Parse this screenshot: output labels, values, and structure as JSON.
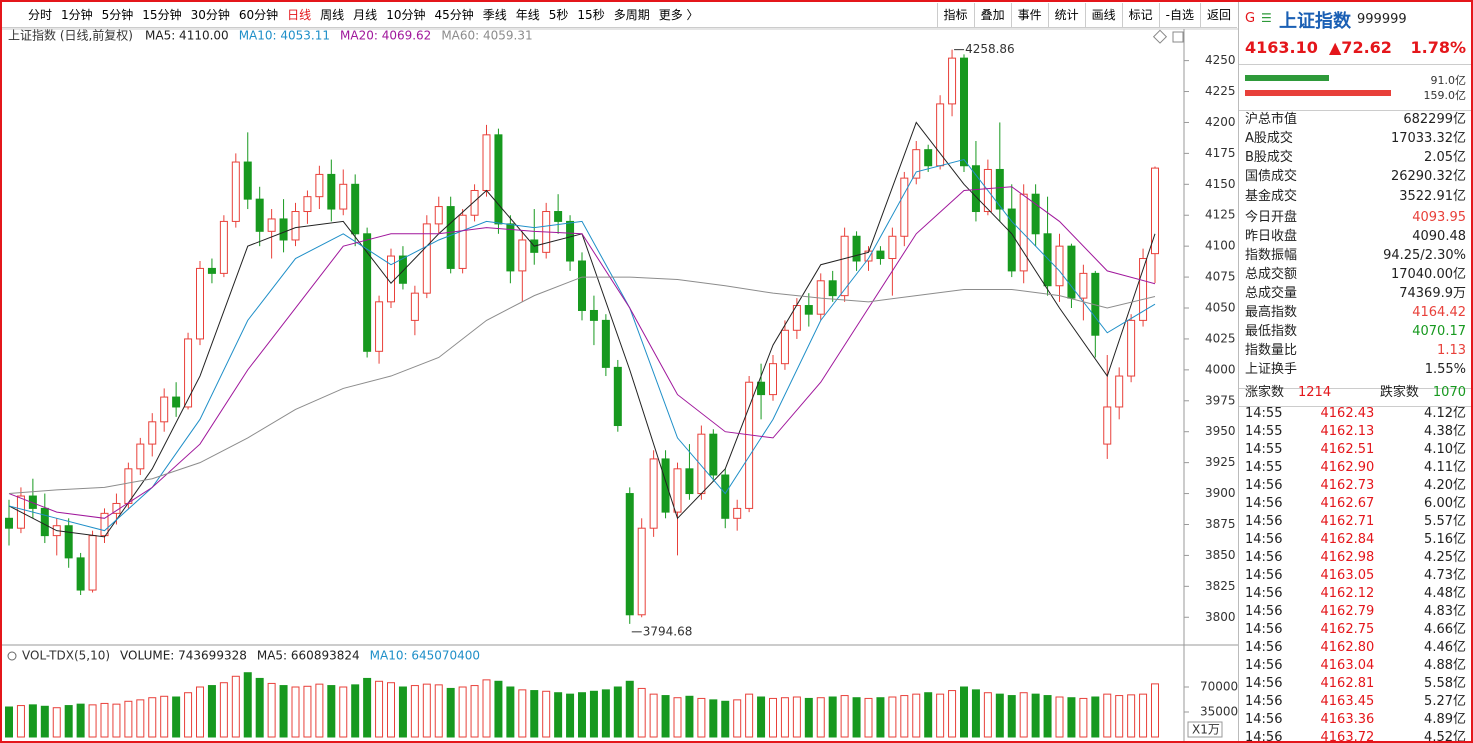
{
  "toolbar": {
    "periods": [
      "分时",
      "1分钟",
      "5分钟",
      "15分钟",
      "30分钟",
      "60分钟",
      "日线",
      "周线",
      "月线",
      "10分钟",
      "45分钟",
      "季线",
      "年线",
      "5秒",
      "15秒",
      "多周期",
      "更多 〉"
    ],
    "active": 6,
    "tools": [
      "指标",
      "叠加",
      "事件",
      "统计",
      "画线",
      "标记",
      "-自选",
      "返回"
    ]
  },
  "chart_data": [
    {
      "type": "candlestick",
      "title": "上证指数 (日线,前复权)",
      "up_color": "#e8403a",
      "down_color": "#17991f",
      "candles": [
        [
          3880,
          3895,
          3858,
          3872
        ],
        [
          3872,
          3905,
          3868,
          3898
        ],
        [
          3898,
          3912,
          3880,
          3888
        ],
        [
          3888,
          3900,
          3860,
          3866
        ],
        [
          3866,
          3880,
          3850,
          3874
        ],
        [
          3874,
          3880,
          3840,
          3848
        ],
        [
          3848,
          3852,
          3818,
          3822
        ],
        [
          3822,
          3870,
          3820,
          3866
        ],
        [
          3866,
          3888,
          3860,
          3884
        ],
        [
          3884,
          3900,
          3875,
          3892
        ],
        [
          3892,
          3925,
          3888,
          3920
        ],
        [
          3920,
          3945,
          3915,
          3940
        ],
        [
          3940,
          3965,
          3930,
          3958
        ],
        [
          3958,
          3985,
          3950,
          3978
        ],
        [
          3978,
          3990,
          3962,
          3970
        ],
        [
          3970,
          4030,
          3968,
          4025
        ],
        [
          4025,
          4088,
          4020,
          4082
        ],
        [
          4082,
          4090,
          4070,
          4078
        ],
        [
          4078,
          4125,
          4075,
          4120
        ],
        [
          4120,
          4175,
          4115,
          4168
        ],
        [
          4168,
          4192,
          4130,
          4138
        ],
        [
          4138,
          4148,
          4100,
          4112
        ],
        [
          4112,
          4130,
          4090,
          4122
        ],
        [
          4122,
          4138,
          4095,
          4105
        ],
        [
          4105,
          4135,
          4100,
          4128
        ],
        [
          4128,
          4145,
          4118,
          4140
        ],
        [
          4140,
          4165,
          4130,
          4158
        ],
        [
          4158,
          4170,
          4120,
          4130
        ],
        [
          4130,
          4162,
          4125,
          4150
        ],
        [
          4150,
          4158,
          4100,
          4110
        ],
        [
          4110,
          4115,
          4010,
          4015
        ],
        [
          4015,
          4060,
          4005,
          4055
        ],
        [
          4055,
          4098,
          4050,
          4092
        ],
        [
          4092,
          4100,
          4065,
          4070
        ],
        [
          4040,
          4068,
          4028,
          4062
        ],
        [
          4062,
          4125,
          4058,
          4118
        ],
        [
          4118,
          4140,
          4110,
          4132
        ],
        [
          4132,
          4140,
          4078,
          4082
        ],
        [
          4082,
          4130,
          4078,
          4125
        ],
        [
          4125,
          4150,
          4120,
          4145
        ],
        [
          4145,
          4198,
          4140,
          4190
        ],
        [
          4190,
          4195,
          4110,
          4118
        ],
        [
          4118,
          4125,
          4070,
          4080
        ],
        [
          4080,
          4112,
          4055,
          4105
        ],
        [
          4105,
          4130,
          4085,
          4095
        ],
        [
          4095,
          4135,
          4090,
          4128
        ],
        [
          4128,
          4142,
          4110,
          4120
        ],
        [
          4120,
          4125,
          4080,
          4088
        ],
        [
          4088,
          4095,
          4040,
          4048
        ],
        [
          4048,
          4060,
          4020,
          4040
        ],
        [
          4040,
          4045,
          3995,
          4002
        ],
        [
          4002,
          4008,
          3950,
          3955
        ],
        [
          3900,
          3905,
          3794.68,
          3802
        ],
        [
          3802,
          3880,
          3800,
          3872
        ],
        [
          3872,
          3935,
          3865,
          3928
        ],
        [
          3928,
          3935,
          3880,
          3885
        ],
        [
          3885,
          3925,
          3850,
          3920
        ],
        [
          3920,
          3940,
          3895,
          3900
        ],
        [
          3900,
          3955,
          3895,
          3948
        ],
        [
          3948,
          3952,
          3910,
          3915
        ],
        [
          3915,
          3920,
          3872,
          3880
        ],
        [
          3880,
          3895,
          3870,
          3888
        ],
        [
          3888,
          3995,
          3885,
          3990
        ],
        [
          3990,
          4005,
          3960,
          3980
        ],
        [
          3980,
          4012,
          3975,
          4005
        ],
        [
          4005,
          4040,
          4000,
          4032
        ],
        [
          4032,
          4058,
          4025,
          4052
        ],
        [
          4052,
          4062,
          4035,
          4045
        ],
        [
          4045,
          4078,
          4040,
          4072
        ],
        [
          4072,
          4080,
          4055,
          4060
        ],
        [
          4060,
          4115,
          4055,
          4108
        ],
        [
          4108,
          4112,
          4080,
          4088
        ],
        [
          4088,
          4100,
          4080,
          4096
        ],
        [
          4096,
          4100,
          4085,
          4090
        ],
        [
          4090,
          4115,
          4060,
          4108
        ],
        [
          4108,
          4160,
          4100,
          4155
        ],
        [
          4155,
          4185,
          4150,
          4178
        ],
        [
          4178,
          4182,
          4160,
          4165
        ],
        [
          4165,
          4222,
          4162,
          4215
        ],
        [
          4215,
          4258.86,
          4205,
          4252
        ],
        [
          4252,
          4255,
          4160,
          4165
        ],
        [
          4165,
          4185,
          4120,
          4128
        ],
        [
          4128,
          4170,
          4125,
          4162
        ],
        [
          4162,
          4200,
          4120,
          4130
        ],
        [
          4130,
          4150,
          4075,
          4080
        ],
        [
          4080,
          4150,
          4070,
          4142
        ],
        [
          4142,
          4150,
          4100,
          4110
        ],
        [
          4110,
          4140,
          4060,
          4068
        ],
        [
          4068,
          4110,
          4055,
          4100
        ],
        [
          4100,
          4102,
          4050,
          4058
        ],
        [
          4058,
          4085,
          4040,
          4078
        ],
        [
          4078,
          4080,
          4010,
          4028
        ],
        [
          3940,
          4012,
          3928,
          3970
        ],
        [
          3970,
          4002,
          3960,
          3995
        ],
        [
          3995,
          4045,
          3990,
          4040
        ],
        [
          4040,
          4098,
          4035,
          4090
        ],
        [
          4093.95,
          4164.42,
          4070.17,
          4163.1
        ]
      ],
      "series": [
        {
          "name": "MA5: 4110.00",
          "color": "#222222",
          "values": [
            3890,
            3870,
            3865,
            3920,
            3995,
            4100,
            4115,
            4120,
            4070,
            4110,
            4145,
            4100,
            4110,
            4000,
            3880,
            3920,
            4020,
            4085,
            4095,
            4200,
            4150,
            4110,
            4050,
            3995,
            4110
          ]
        },
        {
          "name": "MA10: 4053.11",
          "color": "#1f8fc8",
          "values": [
            3890,
            3880,
            3870,
            3905,
            3960,
            4040,
            4090,
            4110,
            4085,
            4105,
            4120,
            4115,
            4120,
            4050,
            3945,
            3900,
            3960,
            4040,
            4090,
            4160,
            4170,
            4120,
            4080,
            4030,
            4053.11
          ]
        },
        {
          "name": "MA20: 4069.62",
          "color": "#a0179c",
          "values": [
            3900,
            3885,
            3880,
            3905,
            3940,
            4000,
            4050,
            4100,
            4110,
            4110,
            4115,
            4112,
            4110,
            4050,
            3980,
            3950,
            3945,
            3990,
            4050,
            4110,
            4145,
            4148,
            4120,
            4080,
            4069.62
          ]
        },
        {
          "name": "MA60: 4059.31",
          "color": "#8c8c8c",
          "values": [
            3900,
            3903,
            3905,
            3912,
            3925,
            3945,
            3968,
            3985,
            3995,
            4010,
            4040,
            4060,
            4075,
            4075,
            4073,
            4068,
            4062,
            4058,
            4055,
            4060,
            4065,
            4065,
            4060,
            4050,
            4059.31
          ]
        }
      ],
      "ylim": [
        3780,
        4261
      ],
      "yticks": [
        3800,
        3825,
        3850,
        3875,
        3900,
        3925,
        3950,
        3975,
        4000,
        4025,
        4050,
        4075,
        4100,
        4125,
        4150,
        4175,
        4200,
        4225,
        4250
      ]
    },
    {
      "type": "bar",
      "title": "VOL-TDX(5,10)",
      "unit": "X1万",
      "legend": [
        {
          "name": "VOLUME: 743699328",
          "color": "#222222"
        },
        {
          "name": "MA5: 660893824",
          "color": "#222222"
        },
        {
          "name": "MA10: 645070400",
          "color": "#1f8fc8"
        }
      ],
      "values": [
        42000,
        44000,
        45000,
        43000,
        41000,
        44000,
        46000,
        45000,
        47000,
        46000,
        50000,
        52000,
        55000,
        57000,
        56000,
        62000,
        70000,
        72000,
        76000,
        85000,
        90000,
        82000,
        75000,
        72000,
        70000,
        71000,
        74000,
        72000,
        70000,
        73000,
        82000,
        78000,
        76000,
        70000,
        72000,
        74000,
        73000,
        68000,
        70000,
        72000,
        80000,
        78000,
        70000,
        66000,
        65000,
        64000,
        62000,
        60000,
        62000,
        64000,
        66000,
        70000,
        78000,
        68000,
        60000,
        58000,
        55000,
        57000,
        54000,
        52000,
        50000,
        52000,
        60000,
        56000,
        54000,
        55000,
        56000,
        54000,
        55000,
        56000,
        58000,
        55000,
        54000,
        55000,
        56000,
        58000,
        60000,
        62000,
        60000,
        65000,
        70000,
        66000,
        62000,
        60000,
        58000,
        62000,
        60000,
        58000,
        56000,
        55000,
        54000,
        56000,
        60000,
        58000,
        59000,
        60000,
        74370
      ],
      "ylim": [
        0,
        98000
      ],
      "yticks": [
        35000,
        70000
      ]
    }
  ],
  "quote": {
    "flag": "G",
    "icon": "☰",
    "name": "上证指数",
    "code": "999999",
    "price": "4163.10",
    "change": "▲72.62",
    "pct": "1.78%",
    "bars": {
      "values": [
        91.0,
        159.0
      ],
      "value_labels": [
        "91.0亿",
        "159.0亿"
      ],
      "colors": [
        "#2e9a3a",
        "#e8403a"
      ]
    },
    "rows": [
      [
        "沪总市值",
        "682299亿"
      ],
      [
        "A股成交",
        "17033.32亿"
      ],
      [
        "B股成交",
        "2.05亿"
      ],
      [
        "国债成交",
        "26290.32亿"
      ],
      [
        "基金成交",
        "3522.91亿"
      ],
      [
        "今日开盘",
        "4093.95"
      ],
      [
        "昨日收盘",
        "4090.48"
      ],
      [
        "指数振幅",
        "94.25/2.30%"
      ],
      [
        "总成交额",
        "17040.00亿"
      ],
      [
        "总成交量",
        "74369.9万"
      ],
      [
        "最高指数",
        "4164.42"
      ],
      [
        "最低指数",
        "4070.17"
      ],
      [
        "指数量比",
        "1.13"
      ],
      [
        "上证换手",
        "1.55%"
      ]
    ],
    "row_colors": [
      "#222",
      "#222",
      "#222",
      "#222",
      "#222",
      "#e8403a",
      "#222",
      "#222",
      "#222",
      "#222",
      "#e8403a",
      "#17991f",
      "#e8403a",
      "#222"
    ],
    "breadth": {
      "up_label": "涨家数",
      "up": "1214",
      "down_label": "跌家数",
      "down": "1070"
    },
    "ticks": [
      [
        "14:55",
        "4162.43",
        "4.12亿"
      ],
      [
        "14:55",
        "4162.13",
        "4.38亿"
      ],
      [
        "14:55",
        "4162.51",
        "4.10亿"
      ],
      [
        "14:55",
        "4162.90",
        "4.11亿"
      ],
      [
        "14:56",
        "4162.73",
        "4.20亿"
      ],
      [
        "14:56",
        "4162.67",
        "6.00亿"
      ],
      [
        "14:56",
        "4162.71",
        "5.57亿"
      ],
      [
        "14:56",
        "4162.84",
        "5.16亿"
      ],
      [
        "14:56",
        "4162.98",
        "4.25亿"
      ],
      [
        "14:56",
        "4163.05",
        "4.73亿"
      ],
      [
        "14:56",
        "4162.12",
        "4.48亿"
      ],
      [
        "14:56",
        "4162.79",
        "4.83亿"
      ],
      [
        "14:56",
        "4162.75",
        "4.66亿"
      ],
      [
        "14:56",
        "4162.80",
        "4.46亿"
      ],
      [
        "14:56",
        "4163.04",
        "4.88亿"
      ],
      [
        "14:56",
        "4162.81",
        "5.58亿"
      ],
      [
        "14:56",
        "4163.45",
        "5.27亿"
      ],
      [
        "14:56",
        "4163.36",
        "4.89亿"
      ],
      [
        "14:56",
        "4163.72",
        "4.52亿"
      ]
    ]
  }
}
